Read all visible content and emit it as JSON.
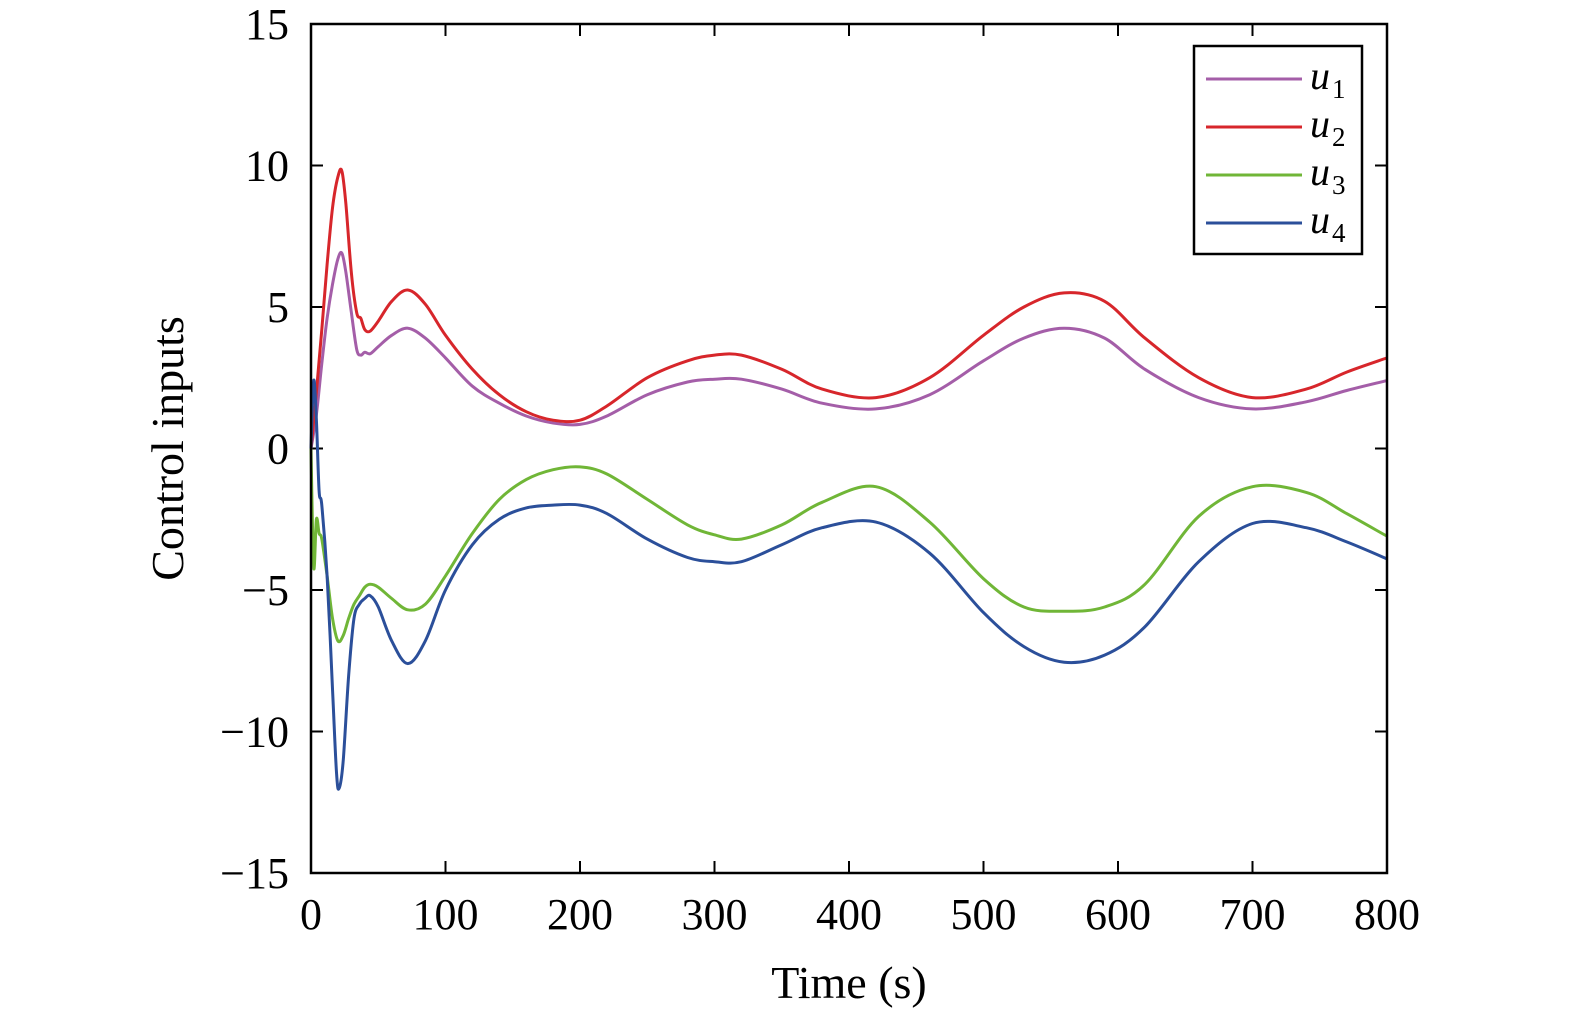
{
  "chart_data": {
    "type": "line",
    "xlabel": "Time (s)",
    "ylabel": "Control inputs",
    "xlim": [
      0,
      800
    ],
    "ylim": [
      -15,
      15
    ],
    "xticks": [
      0,
      100,
      200,
      300,
      400,
      500,
      600,
      700,
      800
    ],
    "yticks": [
      -15,
      -10,
      -5,
      0,
      5,
      10,
      15
    ],
    "xtick_labels": [
      "0",
      "100",
      "200",
      "300",
      "400",
      "500",
      "600",
      "700",
      "800"
    ],
    "ytick_labels": [
      "−15",
      "−10",
      "−5",
      "0",
      "5",
      "10",
      "15"
    ],
    "grid": false,
    "legend_position": "top-right",
    "series": [
      {
        "name": "u1",
        "symbol": "u",
        "subscript": "1",
        "color": "#a45ea8",
        "x": [
          0,
          4,
          8,
          12,
          16,
          20,
          23,
          26,
          30,
          34,
          37,
          40,
          44,
          50,
          60,
          72,
          85,
          100,
          120,
          140,
          160,
          180,
          200,
          220,
          250,
          280,
          300,
          320,
          350,
          380,
          420,
          460,
          500,
          530,
          560,
          590,
          620,
          660,
          700,
          740,
          770,
          800
        ],
        "y": [
          0,
          1.2,
          3.0,
          4.6,
          5.8,
          6.7,
          6.9,
          6.2,
          4.8,
          3.5,
          3.3,
          3.4,
          3.35,
          3.6,
          4.0,
          4.25,
          3.9,
          3.2,
          2.2,
          1.6,
          1.15,
          0.9,
          0.85,
          1.15,
          1.9,
          2.35,
          2.45,
          2.45,
          2.1,
          1.6,
          1.4,
          1.9,
          3.1,
          3.9,
          4.25,
          3.9,
          2.8,
          1.8,
          1.4,
          1.65,
          2.05,
          2.4
        ]
      },
      {
        "name": "u2",
        "symbol": "u",
        "subscript": "2",
        "color": "#d7262b",
        "x": [
          0,
          4,
          8,
          12,
          16,
          20,
          23,
          26,
          30,
          34,
          37,
          40,
          44,
          50,
          60,
          72,
          85,
          100,
          120,
          140,
          160,
          180,
          200,
          220,
          250,
          280,
          300,
          320,
          350,
          380,
          420,
          460,
          500,
          530,
          560,
          590,
          620,
          660,
          700,
          740,
          770,
          800
        ],
        "y": [
          0,
          2.0,
          4.2,
          6.5,
          8.5,
          9.6,
          9.8,
          8.6,
          6.2,
          4.8,
          4.6,
          4.2,
          4.15,
          4.5,
          5.2,
          5.6,
          5.1,
          4.0,
          2.8,
          1.9,
          1.3,
          1.0,
          1.0,
          1.5,
          2.5,
          3.1,
          3.3,
          3.3,
          2.8,
          2.1,
          1.8,
          2.5,
          4.0,
          5.0,
          5.5,
          5.2,
          3.9,
          2.5,
          1.8,
          2.1,
          2.7,
          3.2
        ]
      },
      {
        "name": "u3",
        "symbol": "u",
        "subscript": "3",
        "color": "#70b637",
        "x": [
          0,
          2,
          4,
          6,
          8,
          12,
          16,
          20,
          24,
          28,
          32,
          36,
          40,
          44,
          50,
          60,
          72,
          85,
          100,
          120,
          140,
          160,
          180,
          200,
          220,
          250,
          280,
          300,
          320,
          350,
          380,
          420,
          460,
          500,
          530,
          560,
          590,
          620,
          660,
          700,
          740,
          770,
          800
        ],
        "y": [
          0,
          -4.2,
          -2.5,
          -3.0,
          -3.2,
          -4.5,
          -6.0,
          -6.8,
          -6.6,
          -6.0,
          -5.5,
          -5.2,
          -4.9,
          -4.8,
          -4.9,
          -5.3,
          -5.7,
          -5.5,
          -4.5,
          -3.0,
          -1.8,
          -1.1,
          -0.75,
          -0.65,
          -0.9,
          -1.8,
          -2.7,
          -3.05,
          -3.2,
          -2.7,
          -1.9,
          -1.35,
          -2.6,
          -4.6,
          -5.6,
          -5.75,
          -5.6,
          -4.8,
          -2.4,
          -1.35,
          -1.55,
          -2.3,
          -3.1
        ]
      },
      {
        "name": "u4",
        "symbol": "u",
        "subscript": "4",
        "color": "#2b4f9a",
        "x": [
          0,
          2,
          4,
          6,
          8,
          12,
          16,
          19,
          21,
          24,
          28,
          32,
          36,
          40,
          44,
          50,
          60,
          72,
          85,
          100,
          120,
          140,
          160,
          180,
          200,
          220,
          250,
          280,
          300,
          320,
          350,
          380,
          420,
          460,
          500,
          530,
          560,
          590,
          620,
          660,
          700,
          740,
          770,
          800
        ],
        "y": [
          0,
          2.4,
          1.0,
          -1.5,
          -2.0,
          -4.5,
          -8.5,
          -11.5,
          -12.0,
          -11.0,
          -8.0,
          -6.0,
          -5.5,
          -5.3,
          -5.2,
          -5.6,
          -6.8,
          -7.6,
          -6.8,
          -5.0,
          -3.4,
          -2.5,
          -2.1,
          -2.0,
          -2.0,
          -2.3,
          -3.2,
          -3.85,
          -4.0,
          -4.0,
          -3.4,
          -2.8,
          -2.6,
          -3.7,
          -5.8,
          -7.0,
          -7.55,
          -7.3,
          -6.3,
          -4.0,
          -2.65,
          -2.8,
          -3.3,
          -3.9
        ]
      }
    ]
  }
}
